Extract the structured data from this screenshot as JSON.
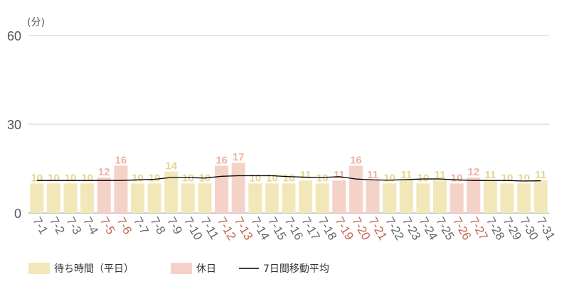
{
  "chart_data": {
    "type": "bar",
    "unit_label": "(分)",
    "ylim": [
      0,
      60
    ],
    "yticks": [
      "0",
      "30",
      "60"
    ],
    "grid": true,
    "legend_position": "bottom-left",
    "categories": [
      "7-1",
      "7-2",
      "7-3",
      "7-4",
      "7-5",
      "7-6",
      "7-7",
      "7-8",
      "7-9",
      "7-10",
      "7-11",
      "7-12",
      "7-13",
      "7-14",
      "7-15",
      "7-16",
      "7-17",
      "7-18",
      "7-19",
      "7-20",
      "7-21",
      "7-22",
      "7-23",
      "7-24",
      "7-25",
      "7-26",
      "7-27",
      "7-28",
      "7-29",
      "7-30",
      "7-31"
    ],
    "values": [
      10,
      10,
      10,
      10,
      12,
      16,
      10,
      10,
      14,
      10,
      10,
      16,
      17,
      10,
      10,
      10,
      11,
      10,
      11,
      16,
      11,
      10,
      11,
      10,
      11,
      10,
      12,
      11,
      10,
      10,
      11
    ],
    "holiday": [
      false,
      false,
      false,
      false,
      true,
      true,
      false,
      false,
      false,
      false,
      false,
      true,
      true,
      false,
      false,
      false,
      false,
      false,
      true,
      true,
      true,
      false,
      false,
      false,
      false,
      true,
      true,
      false,
      false,
      false,
      false
    ],
    "moving_average": [
      11.0,
      11.0,
      11.0,
      11.0,
      11.0,
      11.0,
      11.2,
      11.4,
      12.0,
      12.0,
      11.8,
      12.4,
      12.6,
      12.6,
      12.6,
      12.3,
      12.1,
      12.0,
      12.3,
      11.5,
      11.2,
      11.1,
      11.3,
      11.5,
      11.5,
      11.2,
      11.0,
      11.0,
      11.0,
      10.8,
      10.9
    ],
    "legend": [
      {
        "name": "待ち時間（平日）",
        "color": "#f2e7b8"
      },
      {
        "name": "休日",
        "color": "#f5d2c8"
      },
      {
        "name": "7日間移動平均",
        "color": "#000000"
      }
    ],
    "colors": {
      "weekday_bar": "#f2e7b8",
      "holiday_bar": "#f5d2c8",
      "weekday_label": "#e3d692",
      "holiday_label": "#eeb3a3",
      "weekday_xlabel": "#666666",
      "holiday_xlabel": "#c0664a",
      "line": "#000000",
      "grid": "#cccccc"
    }
  }
}
